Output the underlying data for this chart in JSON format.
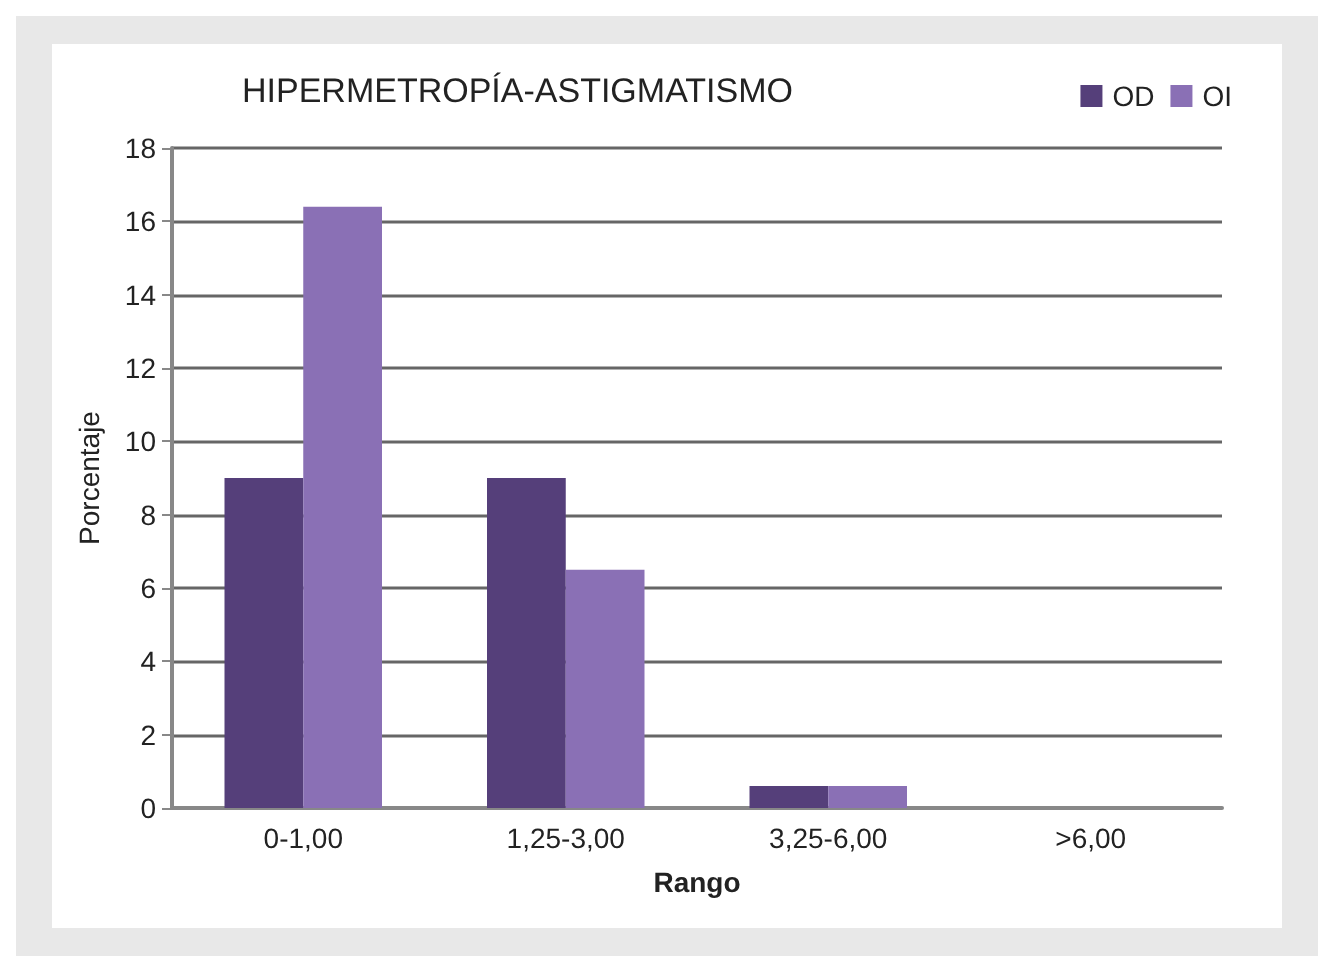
{
  "chart_data": {
    "type": "bar",
    "title": "HIPERMETROPÍA-ASTIGMATISMO",
    "xlabel": "Rango",
    "ylabel": "Porcentaje",
    "categories": [
      "0-1,00",
      "1,25-3,00",
      "3,25-6,00",
      ">6,00"
    ],
    "series": [
      {
        "name": "OD",
        "color": "#553f7a",
        "values": [
          9,
          9,
          0.6,
          0
        ]
      },
      {
        "name": "OI",
        "color": "#8a70b5",
        "values": [
          16.4,
          6.5,
          0.6,
          0
        ]
      }
    ],
    "ylim": [
      0,
      18
    ],
    "yticks": [
      0,
      2,
      4,
      6,
      8,
      10,
      12,
      14,
      16,
      18
    ],
    "grid": "y",
    "legend": "top right"
  }
}
